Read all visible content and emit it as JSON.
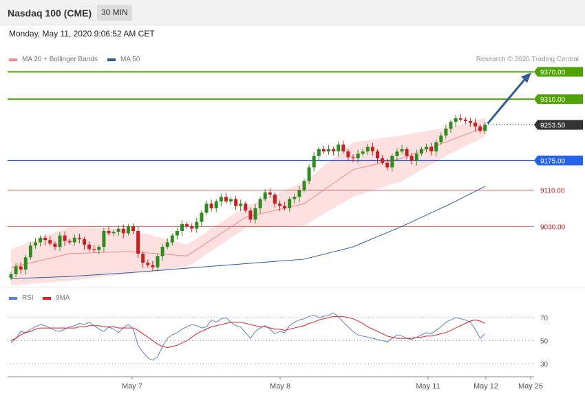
{
  "header": {
    "title": "Nasdaq 100 (CME)",
    "interval": "30 MIN",
    "datetime": "Monday, May 11, 2020 9:06:52 AM CET"
  },
  "legend_main": [
    {
      "label": "MA 20 + Bollinger Bands",
      "color": "#f28a8a"
    },
    {
      "label": "MA 50",
      "color": "#2f5b9a"
    }
  ],
  "legend_rsi": [
    {
      "label": "RSI",
      "color": "#5b7fd6"
    },
    {
      "label": "9MA",
      "color": "#e02020"
    }
  ],
  "copyright": "Research © 2020 Trading Central",
  "colors": {
    "up": "#2e8b1e",
    "down": "#cc1f1f",
    "resistance": "#4ea300",
    "support": "#2563eb",
    "target_line": "#e06060",
    "arrow": "#2f5b9a",
    "band": "#fde0e0"
  },
  "chart_data": [
    {
      "type": "candlestick",
      "price_range": [
        8908,
        9392
      ],
      "y_labels": [
        {
          "value": 9370.0,
          "label": "9370.00",
          "style": "resistance"
        },
        {
          "value": 9310.0,
          "label": "9310.00",
          "style": "resistance"
        },
        {
          "value": 9253.5,
          "label": "9253.50",
          "style": "last"
        },
        {
          "value": 9175.0,
          "label": "9175.00",
          "style": "support"
        },
        {
          "value": 9110.0,
          "label": "9110.00",
          "style": "target"
        },
        {
          "value": 9030.0,
          "label": "9030.00",
          "style": "target"
        }
      ],
      "x_ticks": [
        "May 7",
        "May 8",
        "May 11",
        "May 12",
        "May 26"
      ],
      "closes": [
        8925,
        8942,
        8935,
        8962,
        8988,
        8995,
        9005,
        9000,
        8992,
        8985,
        9010,
        8998,
        8995,
        9005,
        9002,
        8990,
        8980,
        8978,
        8985,
        9020,
        9015,
        9018,
        9025,
        9015,
        9030,
        9020,
        8970,
        8950,
        8945,
        8940,
        8965,
        8985,
        8995,
        9010,
        9020,
        9035,
        9030,
        9025,
        9040,
        9060,
        9080,
        9070,
        9085,
        9095,
        9085,
        9090,
        9075,
        9080,
        9065,
        9045,
        9070,
        9090,
        9105,
        9100,
        9080,
        9075,
        9070,
        9090,
        9095,
        9110,
        9130,
        9160,
        9185,
        9200,
        9195,
        9200,
        9195,
        9210,
        9195,
        9182,
        9180,
        9190,
        9195,
        9205,
        9195,
        9180,
        9170,
        9160,
        9185,
        9195,
        9200,
        9185,
        9175,
        9190,
        9200,
        9205,
        9195,
        9215,
        9230,
        9245,
        9260,
        9268,
        9265,
        9262,
        9258,
        9250,
        9240,
        9253.5
      ],
      "sma50_path": [
        [
          0,
          8915
        ],
        [
          12,
          8920
        ],
        [
          24,
          8928
        ],
        [
          36,
          8938
        ],
        [
          48,
          8948
        ],
        [
          60,
          8958
        ],
        [
          70,
          8985
        ],
        [
          80,
          9030
        ],
        [
          90,
          9080
        ],
        [
          97,
          9118
        ]
      ],
      "ma20_path": [
        [
          0,
          8940
        ],
        [
          12,
          8970
        ],
        [
          24,
          8975
        ],
        [
          36,
          8965
        ],
        [
          48,
          9050
        ],
        [
          60,
          9080
        ],
        [
          70,
          9155
        ],
        [
          80,
          9180
        ],
        [
          90,
          9220
        ],
        [
          97,
          9248
        ]
      ]
    },
    {
      "type": "line",
      "title": "RSI",
      "y_ticks": [
        30,
        50,
        70
      ],
      "rsi": [
        48,
        52,
        58,
        57,
        60,
        62,
        64,
        63,
        61,
        59,
        58,
        60,
        62,
        63,
        65,
        64,
        66,
        63,
        60,
        58,
        62,
        60,
        57,
        61,
        64,
        60,
        46,
        40,
        35,
        33,
        36,
        45,
        52,
        55,
        57,
        60,
        62,
        64,
        63,
        61,
        62,
        68,
        66,
        69,
        70,
        66,
        63,
        62,
        57,
        52,
        58,
        61,
        63,
        60,
        56,
        58,
        57,
        63,
        66,
        68,
        69,
        71,
        72,
        70,
        71,
        72,
        74,
        71,
        66,
        62,
        58,
        55,
        54,
        53,
        52,
        51,
        50,
        49,
        52,
        55,
        54,
        52,
        51,
        53,
        55,
        57,
        56,
        59,
        62,
        66,
        68,
        70,
        69,
        68,
        66,
        60,
        52,
        56
      ],
      "rsi_ma": [
        50,
        52,
        55,
        57,
        58,
        60,
        61,
        61,
        61,
        61,
        61,
        61,
        61,
        61,
        62,
        62,
        63,
        63,
        63,
        62,
        62,
        62,
        61,
        61,
        61,
        61,
        59,
        56,
        53,
        50,
        47,
        45,
        44,
        45,
        46,
        48,
        50,
        53,
        56,
        58,
        60,
        62,
        63,
        64,
        65,
        66,
        66,
        66,
        65,
        64,
        63,
        62,
        62,
        61,
        60,
        60,
        59,
        60,
        61,
        62,
        63,
        65,
        66,
        68,
        69,
        70,
        71,
        71,
        71,
        70,
        69,
        67,
        65,
        62,
        60,
        58,
        56,
        54,
        53,
        52,
        52,
        52,
        52,
        53,
        53,
        54,
        54,
        55,
        56,
        57,
        59,
        61,
        63,
        65,
        67,
        68,
        67,
        65
      ]
    }
  ]
}
